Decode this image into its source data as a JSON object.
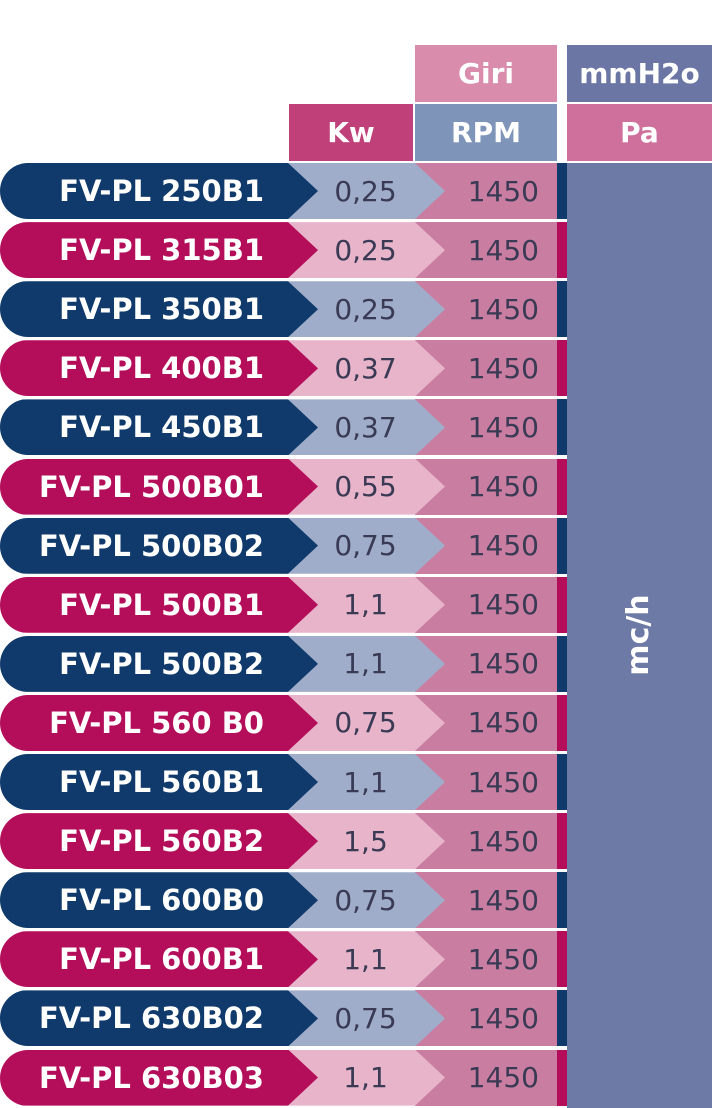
{
  "headers": {
    "giri": "Giri",
    "mmh2o": "mmH2o",
    "kw": "Kw",
    "rpm": "RPM",
    "pa": "Pa",
    "flow_unit": "mc/h"
  },
  "colors": {
    "navy": "#0f3a6b",
    "magenta": "#b40e5a",
    "kw_header": "#c0407a",
    "rpm_header": "#7f94b9",
    "giri_header": "#d98cab",
    "mmh2o_header": "#6b76a4",
    "pa_header": "#cf6f9c",
    "kw_cell_blue": "#9fadca",
    "kw_cell_pink": "#e7b4c9",
    "rpm_cell": "#c97ea1",
    "right_panel": "#6e7aa6"
  },
  "rows": [
    {
      "model": "FV-PL 250B1",
      "kw": "0,25",
      "rpm": "1450",
      "tone": "navy"
    },
    {
      "model": "FV-PL 315B1",
      "kw": "0,25",
      "rpm": "1450",
      "tone": "magenta"
    },
    {
      "model": "FV-PL 350B1",
      "kw": "0,25",
      "rpm": "1450",
      "tone": "navy"
    },
    {
      "model": "FV-PL 400B1",
      "kw": "0,37",
      "rpm": "1450",
      "tone": "magenta"
    },
    {
      "model": "FV-PL 450B1",
      "kw": "0,37",
      "rpm": "1450",
      "tone": "navy"
    },
    {
      "model": "FV-PL 500B01",
      "kw": "0,55",
      "rpm": "1450",
      "tone": "magenta"
    },
    {
      "model": "FV-PL 500B02",
      "kw": "0,75",
      "rpm": "1450",
      "tone": "navy"
    },
    {
      "model": "FV-PL 500B1",
      "kw": "1,1",
      "rpm": "1450",
      "tone": "magenta"
    },
    {
      "model": "FV-PL 500B2",
      "kw": "1,1",
      "rpm": "1450",
      "tone": "navy"
    },
    {
      "model": "FV-PL 560 B0",
      "kw": "0,75",
      "rpm": "1450",
      "tone": "magenta"
    },
    {
      "model": "FV-PL 560B1",
      "kw": "1,1",
      "rpm": "1450",
      "tone": "navy"
    },
    {
      "model": "FV-PL 560B2",
      "kw": "1,5",
      "rpm": "1450",
      "tone": "magenta"
    },
    {
      "model": "FV-PL 600B0",
      "kw": "0,75",
      "rpm": "1450",
      "tone": "navy"
    },
    {
      "model": "FV-PL 600B1",
      "kw": "1,1",
      "rpm": "1450",
      "tone": "magenta"
    },
    {
      "model": "FV-PL 630B02",
      "kw": "0,75",
      "rpm": "1450",
      "tone": "navy"
    },
    {
      "model": "FV-PL 630B03",
      "kw": "1,1",
      "rpm": "1450",
      "tone": "magenta"
    }
  ]
}
